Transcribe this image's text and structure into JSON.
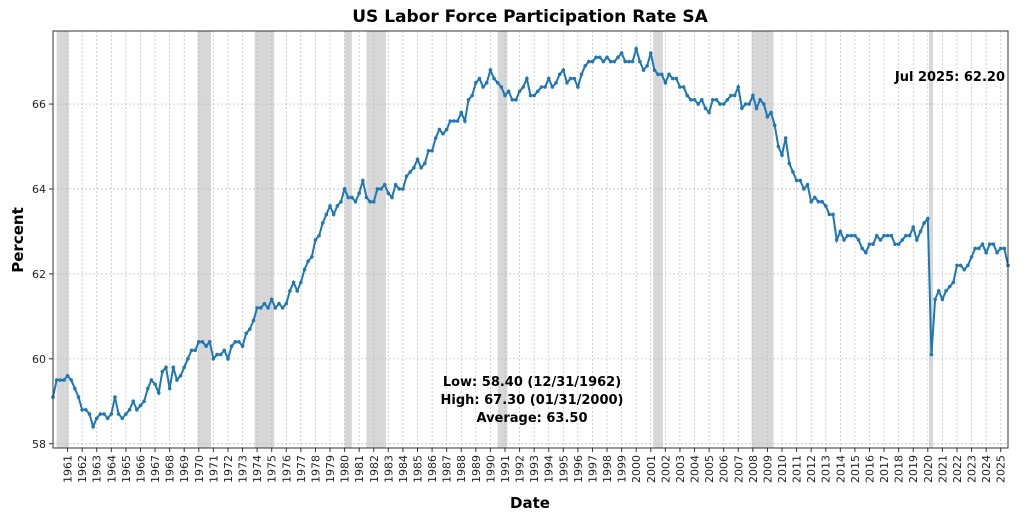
{
  "chart_data": {
    "type": "line",
    "title": "US Labor Force Participation Rate SA",
    "xlabel": "Date",
    "ylabel": "Percent",
    "ylim": [
      57.9,
      67.72
    ],
    "xlim": [
      "1960-01",
      "2025-07"
    ],
    "yticks": [
      58,
      60,
      62,
      64,
      66
    ],
    "xticks": [
      "1961",
      "1962",
      "1963",
      "1964",
      "1965",
      "1966",
      "1967",
      "1968",
      "1969",
      "1970",
      "1971",
      "1972",
      "1973",
      "1974",
      "1975",
      "1976",
      "1977",
      "1978",
      "1979",
      "1980",
      "1981",
      "1982",
      "1983",
      "1984",
      "1985",
      "1986",
      "1987",
      "1988",
      "1989",
      "1990",
      "1991",
      "1992",
      "1993",
      "1994",
      "1995",
      "1996",
      "1997",
      "1998",
      "1999",
      "2000",
      "2001",
      "2002",
      "2003",
      "2004",
      "2005",
      "2006",
      "2007",
      "2008",
      "2009",
      "2010",
      "2011",
      "2012",
      "2013",
      "2014",
      "2015",
      "2016",
      "2017",
      "2018",
      "2019",
      "2020",
      "2021",
      "2022",
      "2023",
      "2024",
      "2025"
    ],
    "grid": true,
    "line_color": "#1f77b4",
    "recession_color": "#d3d3d3",
    "series": [
      {
        "start": "1960-01",
        "frequency": "quarterly",
        "values": [
          59.1,
          59.5,
          59.5,
          59.5,
          59.6,
          59.5,
          59.3,
          59.1,
          58.8,
          58.8,
          58.7,
          58.4,
          58.6,
          58.7,
          58.7,
          58.6,
          58.7,
          59.1,
          58.7,
          58.6,
          58.7,
          58.8,
          59.0,
          58.8,
          58.9,
          59.0,
          59.3,
          59.5,
          59.4,
          59.2,
          59.7,
          59.8,
          59.3,
          59.8,
          59.5,
          59.6,
          59.8,
          60.0,
          60.2,
          60.2,
          60.4,
          60.4,
          60.3,
          60.4,
          60.0,
          60.1,
          60.1,
          60.2,
          60.0,
          60.3,
          60.4,
          60.4,
          60.3,
          60.6,
          60.7,
          60.9,
          61.2,
          61.2,
          61.3,
          61.2,
          61.4,
          61.2,
          61.3,
          61.2,
          61.3,
          61.6,
          61.8,
          61.6,
          61.8,
          62.1,
          62.3,
          62.4,
          62.8,
          62.9,
          63.2,
          63.4,
          63.6,
          63.4,
          63.6,
          63.7,
          64.0,
          63.8,
          63.8,
          63.7,
          63.9,
          64.2,
          63.8,
          63.7,
          63.7,
          64.0,
          64.0,
          64.1,
          63.9,
          63.8,
          64.1,
          64.0,
          64.0,
          64.3,
          64.4,
          64.5,
          64.7,
          64.5,
          64.6,
          64.9,
          64.9,
          65.2,
          65.4,
          65.3,
          65.4,
          65.6,
          65.6,
          65.6,
          65.8,
          65.6,
          66.1,
          66.2,
          66.5,
          66.6,
          66.4,
          66.5,
          66.8,
          66.6,
          66.5,
          66.4,
          66.2,
          66.3,
          66.1,
          66.1,
          66.3,
          66.4,
          66.6,
          66.2,
          66.2,
          66.3,
          66.4,
          66.4,
          66.6,
          66.4,
          66.5,
          66.7,
          66.8,
          66.5,
          66.6,
          66.6,
          66.4,
          66.7,
          66.9,
          67.0,
          67.0,
          67.1,
          67.1,
          67.0,
          67.1,
          67.0,
          67.0,
          67.1,
          67.2,
          67.0,
          67.0,
          67.0,
          67.3,
          67.0,
          66.8,
          66.9,
          67.2,
          66.8,
          66.7,
          66.7,
          66.5,
          66.7,
          66.6,
          66.6,
          66.4,
          66.4,
          66.2,
          66.1,
          66.1,
          66.0,
          66.1,
          65.9,
          65.8,
          66.1,
          66.1,
          66.0,
          66.0,
          66.1,
          66.2,
          66.2,
          66.4,
          65.9,
          66.0,
          66.0,
          66.2,
          65.9,
          66.1,
          66.0,
          65.7,
          65.8,
          65.5,
          65.0,
          64.8,
          65.2,
          64.6,
          64.4,
          64.2,
          64.2,
          64.0,
          64.1,
          63.7,
          63.8,
          63.7,
          63.7,
          63.6,
          63.4,
          63.4,
          62.8,
          63.0,
          62.8,
          62.9,
          62.9,
          62.9,
          62.8,
          62.6,
          62.5,
          62.7,
          62.7,
          62.9,
          62.8,
          62.9,
          62.9,
          62.9,
          62.7,
          62.7,
          62.8,
          62.9,
          62.9,
          63.1,
          62.8,
          63.0,
          63.2,
          63.3,
          60.1,
          61.4,
          61.6,
          61.4,
          61.6,
          61.7,
          61.8,
          62.2,
          62.2,
          62.1,
          62.2,
          62.4,
          62.6,
          62.6,
          62.7,
          62.5,
          62.7,
          62.7,
          62.5,
          62.6,
          62.6,
          62.2
        ]
      }
    ],
    "recessions": [
      [
        "1960-04",
        "1961-02"
      ],
      [
        "1969-12",
        "1970-11"
      ],
      [
        "1973-11",
        "1975-03"
      ],
      [
        "1980-01",
        "1980-07"
      ],
      [
        "1981-07",
        "1982-11"
      ],
      [
        "1990-07",
        "1991-03"
      ],
      [
        "2001-03",
        "2001-11"
      ],
      [
        "2007-12",
        "2009-06"
      ],
      [
        "2020-02",
        "2020-04"
      ]
    ],
    "annotations": {
      "latest": "Jul 2025: 62.20",
      "low": "Low: 58.40 (12/31/1962)",
      "high": "High: 67.30 (01/31/2000)",
      "average": "Average: 63.50"
    }
  }
}
